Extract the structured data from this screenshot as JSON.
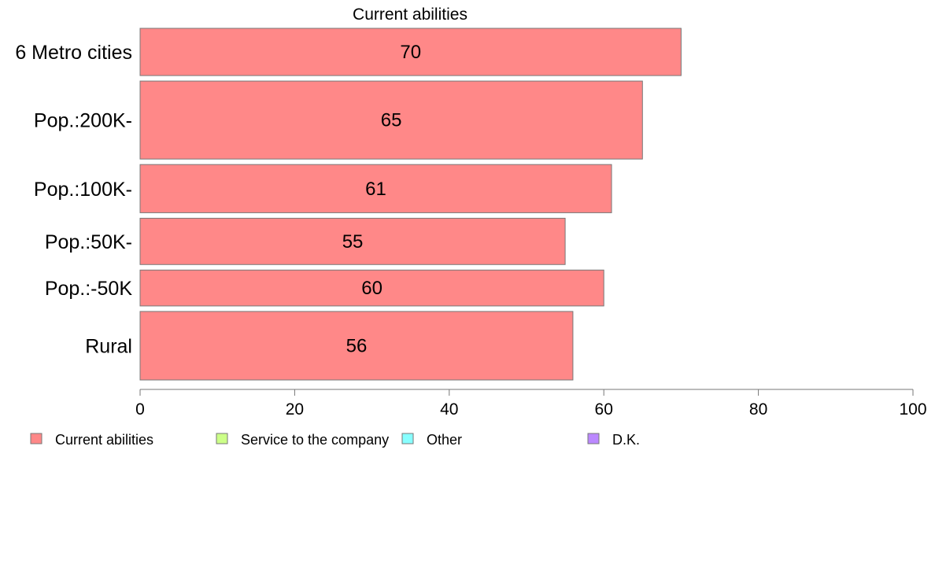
{
  "chart_data": {
    "type": "bar",
    "orientation": "horizontal",
    "title": "Current abilities",
    "categories": [
      "6 Metro cities",
      "Pop.:200K-",
      "Pop.:100K-",
      "Pop.:50K-",
      "Pop.:-50K",
      "Rural"
    ],
    "relative_bar_thickness": [
      1,
      1.65,
      1.02,
      0.98,
      0.76,
      1.45
    ],
    "series": [
      {
        "name": "Current abilities",
        "values": [
          70,
          65,
          61,
          55,
          60,
          56
        ],
        "color": "#FF8888"
      }
    ],
    "data_labels": [
      "70",
      "65",
      "61",
      "55",
      "60",
      "56"
    ],
    "xlim": [
      0,
      100
    ],
    "xticks": [
      0,
      20,
      40,
      60,
      80,
      100
    ],
    "xtick_labels": [
      "0",
      "20",
      "40",
      "60",
      "80",
      "100"
    ],
    "grid": false,
    "legend": {
      "position": "bottom",
      "entries": [
        {
          "label": "Current abilities",
          "color": "#FF8888"
        },
        {
          "label": "Service to the company",
          "color": "#CCFF88"
        },
        {
          "label": "Other",
          "color": "#88FFFF"
        },
        {
          "label": "D.K.",
          "color": "#BB88FF"
        }
      ]
    }
  }
}
